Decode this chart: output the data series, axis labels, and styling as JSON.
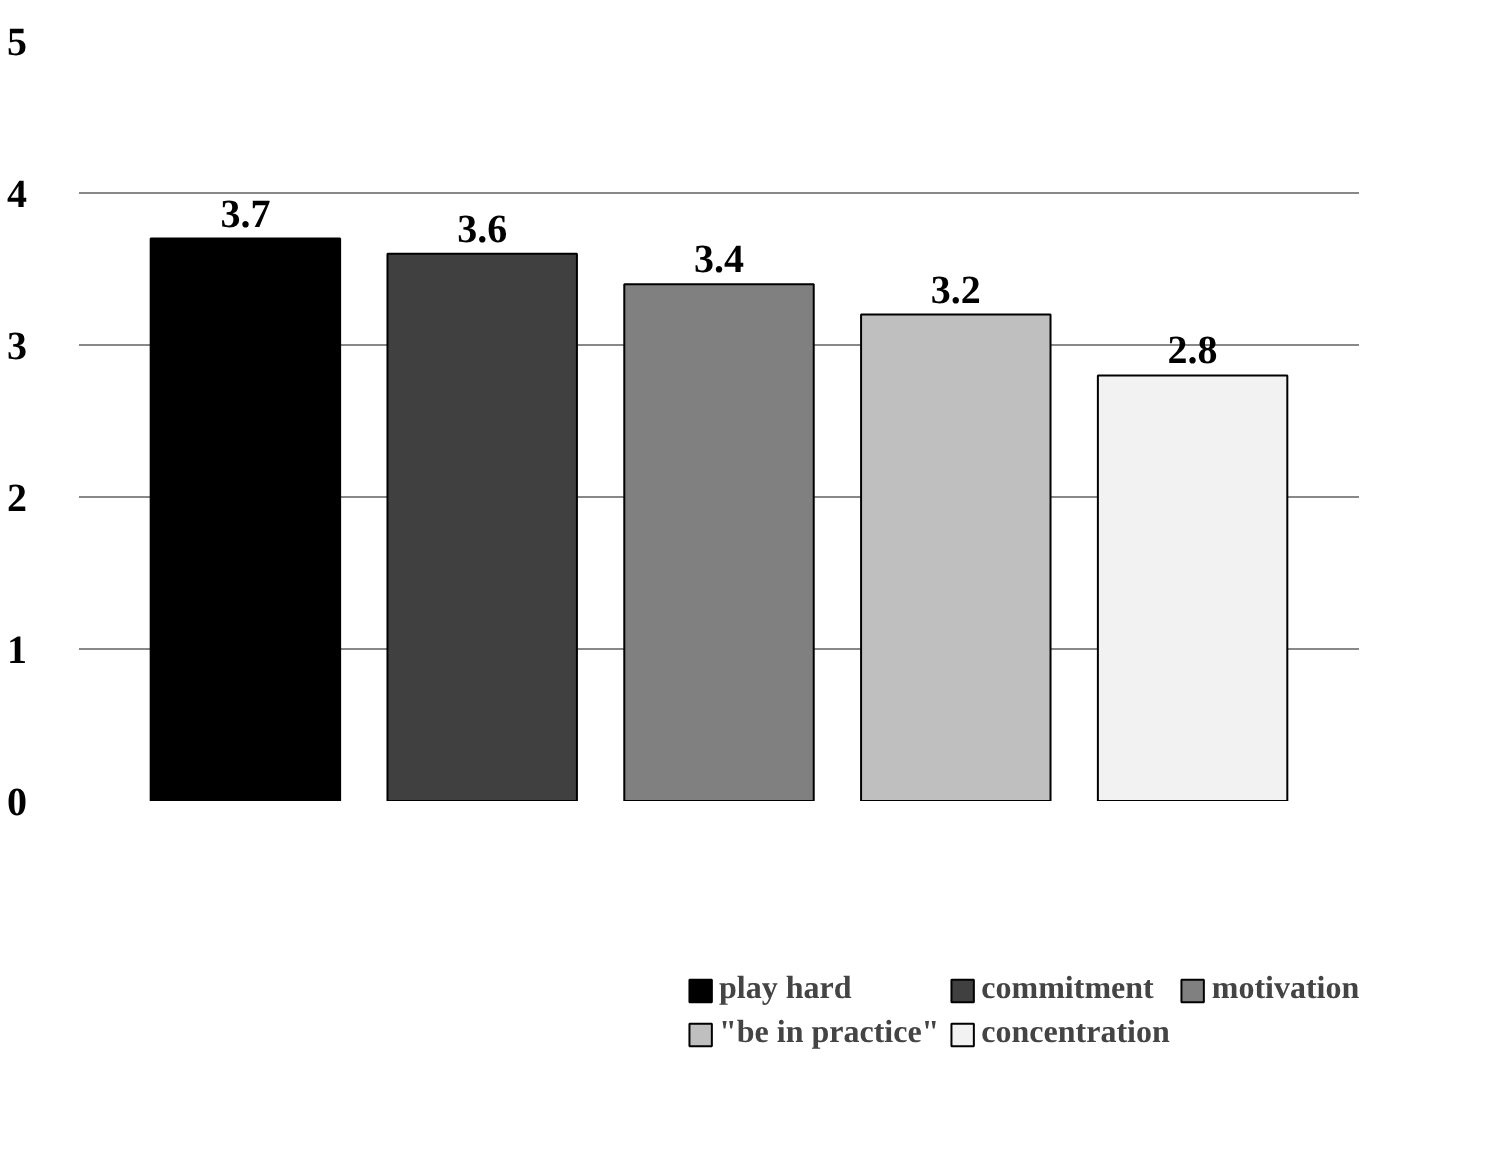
{
  "chart_data": {
    "type": "bar",
    "categories": [
      null
    ],
    "series": [
      {
        "name": "play hard",
        "color": "#000000",
        "values": [
          3.7
        ]
      },
      {
        "name": "commitment",
        "color": "#404040",
        "values": [
          3.6
        ]
      },
      {
        "name": "motivation",
        "color": "#808080",
        "values": [
          3.4
        ]
      },
      {
        "name": "\"be in practice\"",
        "color": "#bfbfbf",
        "values": [
          3.2
        ]
      },
      {
        "name": "concentration",
        "color": "#f2f2f2",
        "values": [
          2.8
        ]
      }
    ],
    "ylim": [
      0,
      5
    ],
    "yticks": [
      0,
      1,
      2,
      3,
      4,
      5
    ],
    "grid": "y",
    "legend": "bottom",
    "data_labels": true
  }
}
